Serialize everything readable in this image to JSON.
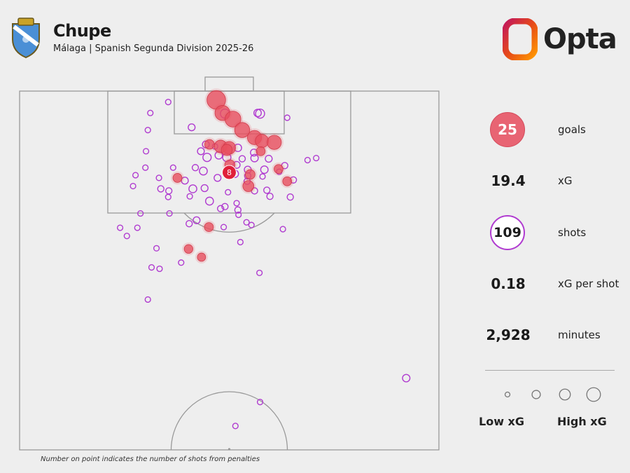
{
  "header": {
    "player_name": "Chupe",
    "subtitle": "Málaga | Spanish Segunda Division 2025-26",
    "brand_name": "Opta"
  },
  "stats": {
    "goals_value": "25",
    "goals_label": "goals",
    "xg_value": "19.4",
    "xg_label": "xG",
    "shots_value": "109",
    "shots_label": "shots",
    "xg_per_shot_value": "0.18",
    "xg_per_shot_label": "xG per shot",
    "minutes_value": "2,928",
    "minutes_label": "minutes"
  },
  "legend": {
    "low_label": "Low xG",
    "high_label": "High xG",
    "xg_levels": [
      0.02,
      0.1,
      0.2,
      0.35
    ]
  },
  "footnote": "Number on point indicates the number of shots from penalties",
  "colors": {
    "goal": "#e8505f",
    "shot": "#b03bd0",
    "pitch_line": "#999999",
    "background": "#eeeeee"
  },
  "chart_data": {
    "type": "scatter",
    "pitch": "half-pitch, attacking goal at top",
    "units": "x = metres from left touchline (0-68), y = metres from goal line (0-52.5), xg = expected goals",
    "goals": [
      {
        "x": 31.9,
        "y": 1.3,
        "xg": 0.6
      },
      {
        "x": 32.9,
        "y": 3.2,
        "xg": 0.35
      },
      {
        "x": 34.6,
        "y": 4.1,
        "xg": 0.4
      },
      {
        "x": 36.1,
        "y": 5.7,
        "xg": 0.35
      },
      {
        "x": 38.1,
        "y": 6.8,
        "xg": 0.3
      },
      {
        "x": 39.3,
        "y": 7.3,
        "xg": 0.25
      },
      {
        "x": 41.3,
        "y": 7.5,
        "xg": 0.3
      },
      {
        "x": 30.8,
        "y": 7.8,
        "xg": 0.1
      },
      {
        "x": 32.6,
        "y": 8.1,
        "xg": 0.22
      },
      {
        "x": 34.0,
        "y": 8.3,
        "xg": 0.22
      },
      {
        "x": 33.6,
        "y": 8.6,
        "xg": 0.15
      },
      {
        "x": 39.1,
        "y": 8.8,
        "xg": 0.08
      },
      {
        "x": 34.1,
        "y": 10.8,
        "xg": 0.12
      },
      {
        "x": 42.0,
        "y": 11.4,
        "xg": 0.08
      },
      {
        "x": 37.4,
        "y": 12.2,
        "xg": 0.1
      },
      {
        "x": 25.6,
        "y": 12.7,
        "xg": 0.08
      },
      {
        "x": 43.4,
        "y": 13.2,
        "xg": 0.08
      },
      {
        "x": 37.1,
        "y": 13.9,
        "xg": 0.15
      },
      {
        "x": 30.7,
        "y": 19.9,
        "xg": 0.08
      },
      {
        "x": 27.4,
        "y": 23.1,
        "xg": 0.07
      },
      {
        "x": 29.5,
        "y": 24.3,
        "xg": 0.06
      }
    ],
    "penalty_goals": {
      "x": 34.0,
      "y": 11.9,
      "count": 8,
      "label": "8"
    },
    "shots": [
      {
        "x": 24.1,
        "y": 1.6,
        "xg": 0.01
      },
      {
        "x": 33.3,
        "y": 3.3,
        "xg": 0.08
      },
      {
        "x": 39.0,
        "y": 3.3,
        "xg": 0.08
      },
      {
        "x": 38.6,
        "y": 3.2,
        "xg": 0.04
      },
      {
        "x": 21.2,
        "y": 3.2,
        "xg": 0.01
      },
      {
        "x": 43.4,
        "y": 3.9,
        "xg": 0.01
      },
      {
        "x": 27.9,
        "y": 5.3,
        "xg": 0.03
      },
      {
        "x": 20.8,
        "y": 5.7,
        "xg": 0.01
      },
      {
        "x": 30.2,
        "y": 7.8,
        "xg": 0.03
      },
      {
        "x": 31.7,
        "y": 8.1,
        "xg": 0.01
      },
      {
        "x": 35.4,
        "y": 8.3,
        "xg": 0.04
      },
      {
        "x": 29.4,
        "y": 8.8,
        "xg": 0.03
      },
      {
        "x": 38.0,
        "y": 9.0,
        "xg": 0.03
      },
      {
        "x": 20.5,
        "y": 8.8,
        "xg": 0.01
      },
      {
        "x": 30.4,
        "y": 9.7,
        "xg": 0.06
      },
      {
        "x": 32.3,
        "y": 9.4,
        "xg": 0.04
      },
      {
        "x": 33.6,
        "y": 9.7,
        "xg": 0.06
      },
      {
        "x": 36.1,
        "y": 9.9,
        "xg": 0.02
      },
      {
        "x": 38.1,
        "y": 9.8,
        "xg": 0.04
      },
      {
        "x": 40.4,
        "y": 9.9,
        "xg": 0.03
      },
      {
        "x": 46.7,
        "y": 10.1,
        "xg": 0.01
      },
      {
        "x": 48.1,
        "y": 9.8,
        "xg": 0.01
      },
      {
        "x": 20.4,
        "y": 11.2,
        "xg": 0.01
      },
      {
        "x": 24.9,
        "y": 11.2,
        "xg": 0.01
      },
      {
        "x": 28.5,
        "y": 11.2,
        "xg": 0.02
      },
      {
        "x": 35.2,
        "y": 10.8,
        "xg": 0.03
      },
      {
        "x": 37.0,
        "y": 11.5,
        "xg": 0.03
      },
      {
        "x": 37.0,
        "y": 12.4,
        "xg": 0.02
      },
      {
        "x": 39.7,
        "y": 11.5,
        "xg": 0.04
      },
      {
        "x": 29.8,
        "y": 11.7,
        "xg": 0.05
      },
      {
        "x": 18.8,
        "y": 12.3,
        "xg": 0.01
      },
      {
        "x": 22.6,
        "y": 12.7,
        "xg": 0.01
      },
      {
        "x": 26.8,
        "y": 13.1,
        "xg": 0.03
      },
      {
        "x": 32.1,
        "y": 12.7,
        "xg": 0.03
      },
      {
        "x": 34.9,
        "y": 12.1,
        "xg": 0.04
      },
      {
        "x": 39.4,
        "y": 12.5,
        "xg": 0.01
      },
      {
        "x": 42.1,
        "y": 11.8,
        "xg": 0.01
      },
      {
        "x": 43.0,
        "y": 10.9,
        "xg": 0.02
      },
      {
        "x": 44.4,
        "y": 13.0,
        "xg": 0.02
      },
      {
        "x": 18.4,
        "y": 13.9,
        "xg": 0.01
      },
      {
        "x": 22.9,
        "y": 14.3,
        "xg": 0.02
      },
      {
        "x": 24.2,
        "y": 14.6,
        "xg": 0.02
      },
      {
        "x": 28.1,
        "y": 14.3,
        "xg": 0.05
      },
      {
        "x": 30.0,
        "y": 14.2,
        "xg": 0.03
      },
      {
        "x": 36.9,
        "y": 13.2,
        "xg": 0.02
      },
      {
        "x": 38.1,
        "y": 14.6,
        "xg": 0.02
      },
      {
        "x": 40.1,
        "y": 14.5,
        "xg": 0.02
      },
      {
        "x": 24.1,
        "y": 15.5,
        "xg": 0.01
      },
      {
        "x": 27.6,
        "y": 15.4,
        "xg": 0.01
      },
      {
        "x": 33.8,
        "y": 14.8,
        "xg": 0.01
      },
      {
        "x": 40.6,
        "y": 15.4,
        "xg": 0.02
      },
      {
        "x": 43.9,
        "y": 15.5,
        "xg": 0.02
      },
      {
        "x": 30.8,
        "y": 16.1,
        "xg": 0.05
      },
      {
        "x": 33.3,
        "y": 16.9,
        "xg": 0.02
      },
      {
        "x": 35.2,
        "y": 16.4,
        "xg": 0.01
      },
      {
        "x": 32.6,
        "y": 17.2,
        "xg": 0.02
      },
      {
        "x": 19.6,
        "y": 17.9,
        "xg": 0.01
      },
      {
        "x": 24.3,
        "y": 17.9,
        "xg": 0.01
      },
      {
        "x": 35.4,
        "y": 17.4,
        "xg": 0.02
      },
      {
        "x": 35.5,
        "y": 18.1,
        "xg": 0.01
      },
      {
        "x": 28.7,
        "y": 18.9,
        "xg": 0.03
      },
      {
        "x": 27.5,
        "y": 19.4,
        "xg": 0.02
      },
      {
        "x": 37.6,
        "y": 19.6,
        "xg": 0.01
      },
      {
        "x": 16.3,
        "y": 20.0,
        "xg": 0.01
      },
      {
        "x": 19.1,
        "y": 20.0,
        "xg": 0.01
      },
      {
        "x": 33.1,
        "y": 19.9,
        "xg": 0.01
      },
      {
        "x": 36.8,
        "y": 19.2,
        "xg": 0.01
      },
      {
        "x": 42.7,
        "y": 20.2,
        "xg": 0.01
      },
      {
        "x": 17.4,
        "y": 21.2,
        "xg": 0.01
      },
      {
        "x": 22.2,
        "y": 23.0,
        "xg": 0.01
      },
      {
        "x": 35.8,
        "y": 22.1,
        "xg": 0.01
      },
      {
        "x": 21.4,
        "y": 25.8,
        "xg": 0.01
      },
      {
        "x": 26.2,
        "y": 25.1,
        "xg": 0.01
      },
      {
        "x": 38.9,
        "y": 26.6,
        "xg": 0.01
      },
      {
        "x": 22.7,
        "y": 26.0,
        "xg": 0.01
      },
      {
        "x": 20.8,
        "y": 30.5,
        "xg": 0.01
      },
      {
        "x": 62.7,
        "y": 42.0,
        "xg": 0.04
      },
      {
        "x": 39.0,
        "y": 45.5,
        "xg": 0.01
      },
      {
        "x": 35.0,
        "y": 49.0,
        "xg": 0.01
      }
    ]
  }
}
